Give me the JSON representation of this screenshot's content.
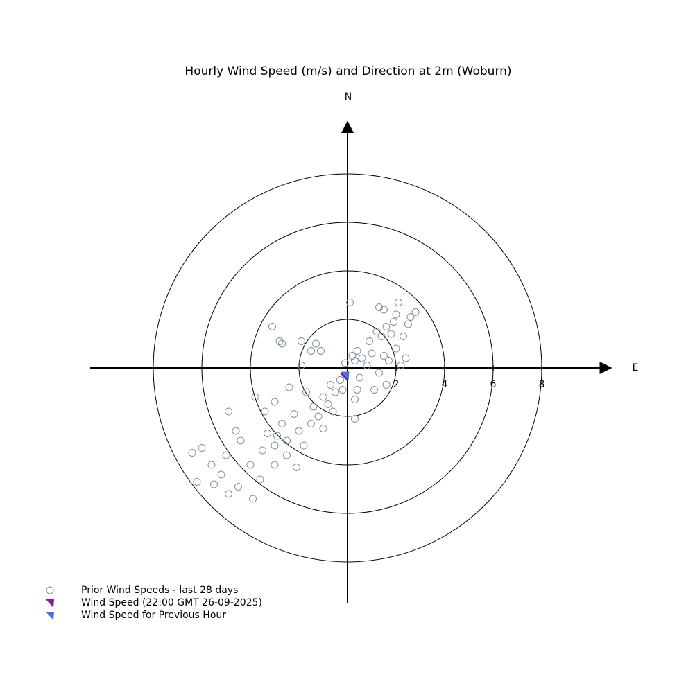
{
  "chart_data": {
    "type": "scatter",
    "title": "Hourly Wind Speed (m/s) and Direction at 2m (Woburn)",
    "north_label": "N",
    "east_label": "E",
    "xlim": [
      -10.6,
      10.9
    ],
    "ylim": [
      -9.7,
      10.2
    ],
    "xticks": [
      2,
      4,
      6,
      8
    ],
    "rings": true,
    "legend": "lower left",
    "series": [
      {
        "name": "Prior Wind Speeds - last 28 days",
        "color": "#8090a0",
        "marker": "circle",
        "x": [
          1.3,
          1.5,
          2.1,
          2.6,
          2.8,
          1.9,
          1.6,
          1.2,
          0.9,
          1.4,
          2.3,
          2.0,
          1.7,
          2.2,
          1.0,
          0.6,
          0.3,
          0.1,
          0.8,
          1.3,
          1.6,
          0.5,
          1.1,
          0.3,
          2.5,
          2.0,
          1.8,
          2.4,
          0.4,
          1.5,
          -3.1,
          -2.8,
          -2.7,
          -1.9,
          -1.3,
          -1.1,
          -1.5,
          -1.9,
          -0.5,
          -0.8,
          -1.2,
          -1.5,
          -1.0,
          -2.0,
          -2.5,
          -3.0,
          -3.5,
          -2.7,
          -1.8,
          -3.4,
          -3.8,
          -4.9,
          -4.4,
          -5.0,
          -6.4,
          -6.0,
          -5.2,
          -6.2,
          -5.5,
          -4.5,
          -3.9,
          -4.9,
          -3.6,
          -3.0,
          -4.0,
          -2.5,
          -2.1,
          -0.3,
          -0.2,
          -0.7,
          -1.0,
          -0.6,
          -1.4,
          -2.2,
          -2.9,
          -3.3,
          0.3,
          0.4,
          -0.1,
          0.2,
          -4.6,
          -5.6,
          -3.0,
          -2.4,
          -1.7
        ],
        "y": [
          2.5,
          2.4,
          2.7,
          2.1,
          2.3,
          1.9,
          1.7,
          1.5,
          1.1,
          1.3,
          1.3,
          0.8,
          0.3,
          0.1,
          0.6,
          0.4,
          0.3,
          2.7,
          0.1,
          -0.2,
          -0.7,
          -0.4,
          -0.9,
          -2.1,
          1.8,
          2.2,
          1.4,
          0.4,
          0.7,
          0.5,
          1.7,
          1.1,
          1.0,
          1.1,
          1.0,
          0.7,
          0.7,
          0.1,
          -1.0,
          -1.5,
          -2.0,
          -2.3,
          -2.5,
          -2.6,
          -3.0,
          -3.2,
          -3.4,
          -2.3,
          -3.2,
          -1.8,
          -1.2,
          -1.8,
          -3.0,
          -3.6,
          -3.5,
          -3.3,
          -4.4,
          -4.7,
          -4.8,
          -4.9,
          -5.4,
          -5.2,
          -4.6,
          -4.0,
          -4.0,
          -3.6,
          -4.1,
          -0.5,
          -0.9,
          -0.7,
          -1.2,
          -1.8,
          -1.6,
          -1.9,
          -2.8,
          -2.7,
          -1.3,
          -0.9,
          0.2,
          0.5,
          -2.6,
          -4.0,
          -1.4,
          -0.8,
          -1.0
        ]
      },
      {
        "name": "Wind Speed (22:00 GMT 26-09-2025)",
        "color": "#8b1a8b",
        "marker": "triangle",
        "x": [
          -0.15
        ],
        "y": [
          -0.35
        ]
      },
      {
        "name": "Wind Speed for Previous Hour",
        "color": "#4a6fe0",
        "marker": "triangle",
        "x": [
          -0.1
        ],
        "y": [
          -0.3
        ]
      }
    ]
  }
}
